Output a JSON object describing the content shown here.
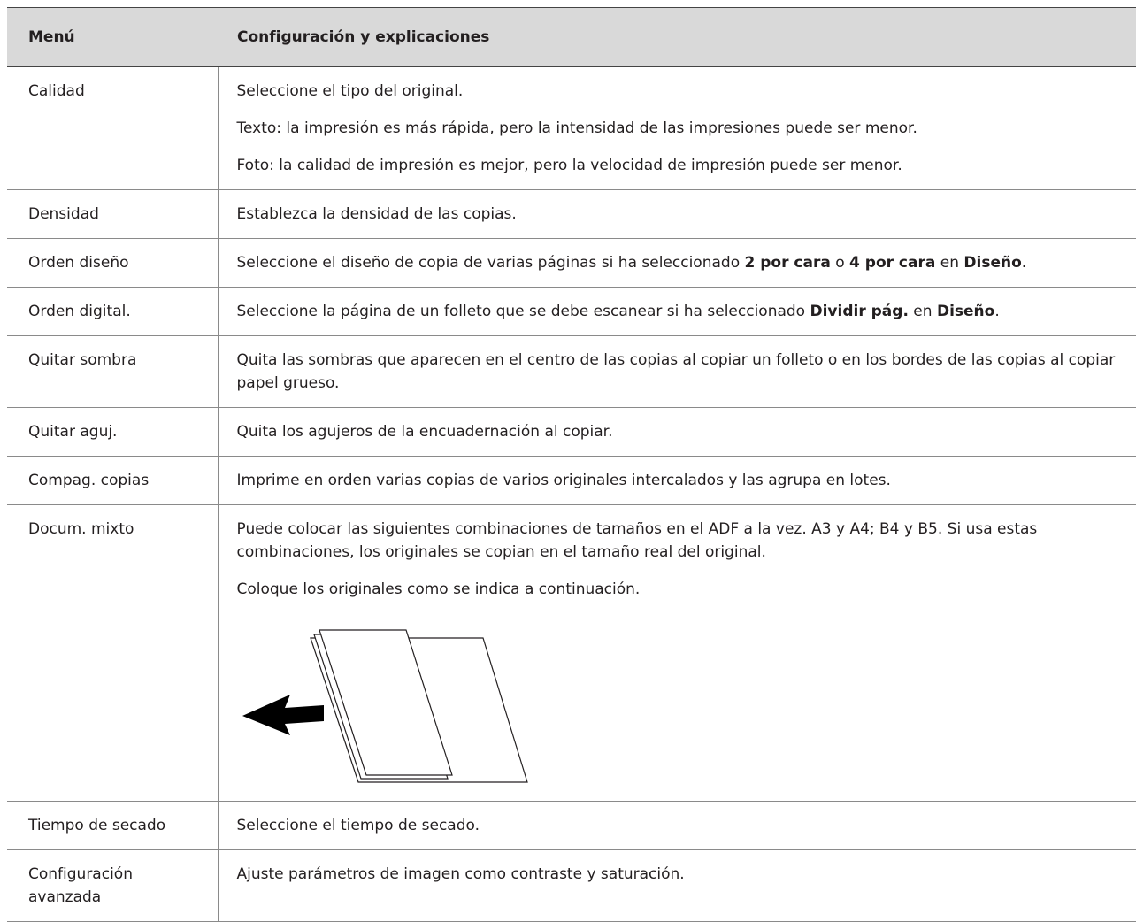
{
  "header": {
    "col1": "Menú",
    "col2": "Configuración y explicaciones"
  },
  "rows": [
    {
      "menu": "Calidad",
      "text": [
        [
          "Seleccione el tipo del original."
        ],
        [
          "Texto: la impresión es más rápida, pero la intensidad de las impresiones puede ser menor."
        ],
        [
          "Foto: la calidad de impresión es mejor, pero la velocidad de impresión puede ser menor."
        ]
      ]
    },
    {
      "menu": "Densidad",
      "text": [
        [
          "Establezca la densidad de las copias."
        ]
      ]
    },
    {
      "menu": "Orden diseño",
      "text": [
        [
          "Seleccione el diseño de copia de varias páginas si ha seleccionado ",
          "2 por cara",
          " o ",
          "4 por cara",
          " en ",
          "Diseño",
          "."
        ]
      ]
    },
    {
      "menu": "Orden digital.",
      "text": [
        [
          "Seleccione la página de un folleto que se debe escanear si ha seleccionado ",
          "Dividir pág.",
          " en ",
          "Diseño",
          "."
        ]
      ]
    },
    {
      "menu": "Quitar sombra",
      "text": [
        [
          "Quita las sombras que aparecen en el centro de las copias al copiar un folleto o en los bordes de las copias al copiar papel grueso."
        ]
      ]
    },
    {
      "menu": "Quitar aguj.",
      "text": [
        [
          "Quita los agujeros de la encuadernación al copiar."
        ]
      ]
    },
    {
      "menu": "Compag. copias",
      "text": [
        [
          "Imprime en orden varias copias de varios originales intercalados y las agrupa en lotes."
        ]
      ]
    },
    {
      "menu": "Docum. mixto",
      "text": [
        [
          "Puede colocar las siguientes combinaciones de tamaños en el ADF a la vez. A3 y A4; B4 y B5. Si usa estas combinaciones, los originales se copian en el tamaño real del original."
        ],
        [
          "Coloque los originales como se indica a continuación."
        ]
      ]
    },
    {
      "menu": "Tiempo de secado",
      "text": [
        [
          "Seleccione el tiempo de secado."
        ]
      ]
    },
    {
      "menu": "Configuración avanzada",
      "text": [
        [
          "Ajuste parámetros de imagen como contraste y saturación."
        ]
      ]
    }
  ]
}
